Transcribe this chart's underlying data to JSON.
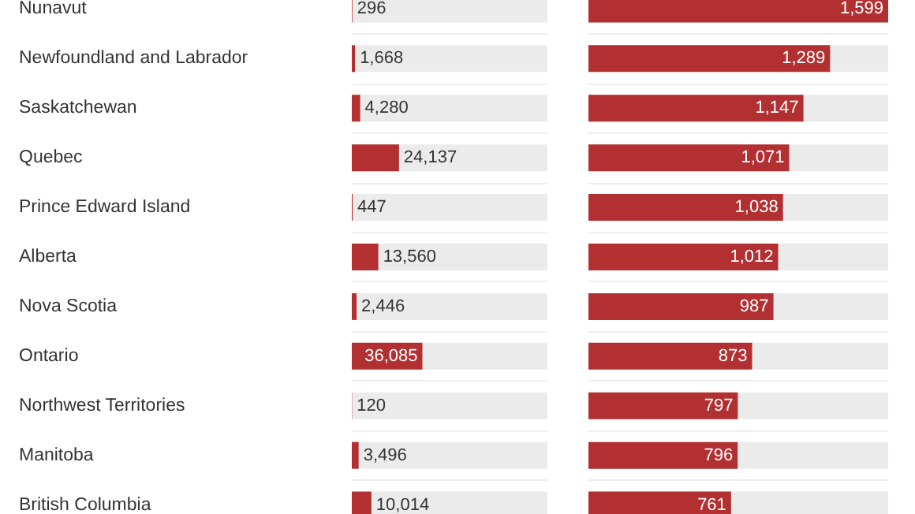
{
  "chart_data": [
    {
      "type": "bar",
      "orientation": "horizontal",
      "categories": [
        "Nunavut",
        "Newfoundland and Labrador",
        "Saskatchewan",
        "Quebec",
        "Prince Edward Island",
        "Alberta",
        "Nova Scotia",
        "Ontario",
        "Northwest Territories",
        "Manitoba",
        "British Columbia"
      ],
      "values": [
        296,
        1668,
        4280,
        24137,
        447,
        13560,
        2446,
        36085,
        120,
        3496,
        10014
      ],
      "value_labels": [
        "296",
        "1,668",
        "4,280",
        "24,137",
        "447",
        "13,560",
        "2,446",
        "36,085",
        "120",
        "3,496",
        "10,014"
      ],
      "color": "#b33032",
      "xlim": [
        0,
        100000
      ],
      "grid": "y",
      "tick_labels": "y"
    },
    {
      "type": "bar",
      "orientation": "horizontal",
      "categories": [
        null,
        null,
        null,
        null,
        null,
        null,
        null,
        null,
        null,
        null,
        null
      ],
      "values": [
        1599,
        1289,
        1147,
        1071,
        1038,
        1012,
        987,
        873,
        797,
        796,
        761
      ],
      "value_labels": [
        "1,599",
        "1,289",
        "1,147",
        "1,071",
        "1,038",
        "1,012",
        "987",
        "873",
        "797",
        "796",
        "761"
      ],
      "color": "#b33032",
      "xlim": [
        0,
        1599
      ],
      "grid": "y",
      "tick_labels": false
    }
  ]
}
